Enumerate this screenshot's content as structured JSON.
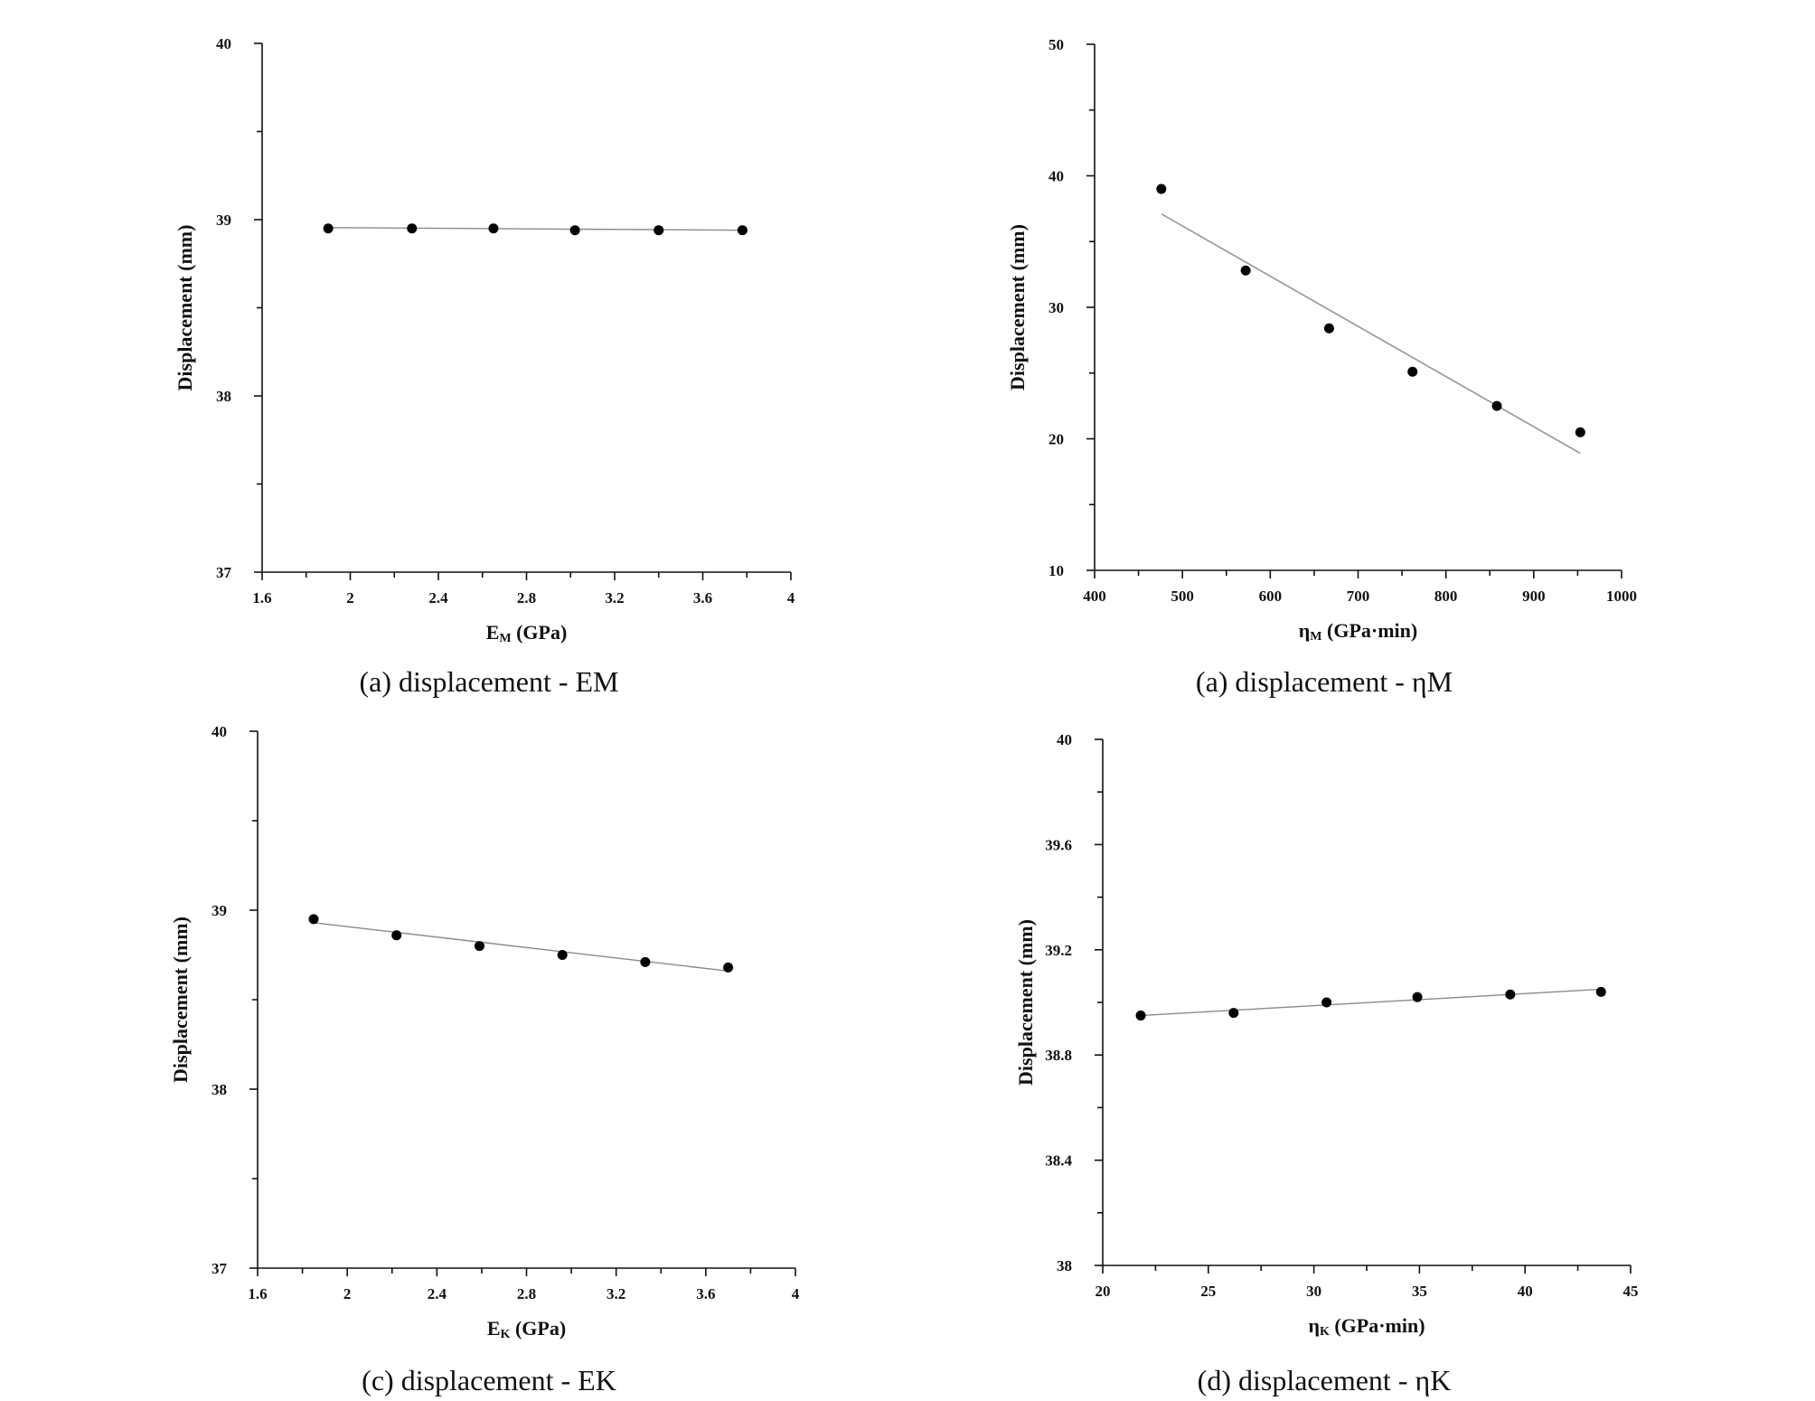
{
  "chart_data": [
    {
      "type": "scatter",
      "caption": "(a) displacement - EM",
      "xlabel": {
        "main": "E",
        "sub": "M",
        "rest": " (GPa)"
      },
      "ylabel": "Displacement (mm)",
      "xlim": [
        1.6,
        4.0
      ],
      "ylim": [
        37,
        40
      ],
      "xticks": [
        "1.6",
        "2",
        "2.4",
        "2.8",
        "3.2",
        "3.6",
        "4"
      ],
      "yticks": [
        "37",
        "38",
        "39",
        "40"
      ],
      "x_minor_ticks": 1,
      "y_minor_ticks": 1,
      "points": {
        "x": [
          1.9,
          2.28,
          2.65,
          3.02,
          3.4,
          3.78
        ],
        "y": [
          38.95,
          38.95,
          38.95,
          38.94,
          38.94,
          38.94
        ]
      },
      "fit": {
        "x": [
          1.9,
          3.78
        ],
        "y": [
          38.955,
          38.94
        ]
      }
    },
    {
      "type": "scatter",
      "caption": "(a) displacement - ηM",
      "xlabel": {
        "main": "η",
        "sub": "M",
        "rest": " (GPa·min)"
      },
      "ylabel": "Displacement (mm)",
      "xlim": [
        400,
        1000
      ],
      "ylim": [
        10,
        50
      ],
      "xticks": [
        "400",
        "500",
        "600",
        "700",
        "800",
        "900",
        "1000"
      ],
      "yticks": [
        "10",
        "20",
        "30",
        "40",
        "50"
      ],
      "x_minor_ticks": 1,
      "y_minor_ticks": 1,
      "points": {
        "x": [
          476,
          572,
          667,
          762,
          858,
          953
        ],
        "y": [
          39.0,
          32.8,
          28.4,
          25.1,
          22.5,
          20.5
        ]
      },
      "fit": {
        "x": [
          476,
          953
        ],
        "y": [
          37.1,
          18.9
        ]
      }
    },
    {
      "type": "scatter",
      "caption": "(c) displacement - EK",
      "xlabel": {
        "main": "E",
        "sub": "K",
        "rest": " (GPa)"
      },
      "ylabel": "Displacement (mm)",
      "xlim": [
        1.6,
        4.0
      ],
      "ylim": [
        37,
        40
      ],
      "xticks": [
        "1.6",
        "2",
        "2.4",
        "2.8",
        "3.2",
        "3.6",
        "4"
      ],
      "yticks": [
        "37",
        "38",
        "39",
        "40"
      ],
      "x_minor_ticks": 1,
      "y_minor_ticks": 1,
      "points": {
        "x": [
          1.85,
          2.22,
          2.59,
          2.96,
          3.33,
          3.7
        ],
        "y": [
          38.95,
          38.86,
          38.8,
          38.75,
          38.71,
          38.68
        ]
      },
      "fit": {
        "x": [
          1.85,
          3.7
        ],
        "y": [
          38.93,
          38.66
        ]
      }
    },
    {
      "type": "scatter",
      "caption": "(d) displacement - ηK",
      "xlabel": {
        "main": "η",
        "sub": "K",
        "rest": " (GPa·min)"
      },
      "ylabel": "Displacement (mm)",
      "xlim": [
        20,
        45
      ],
      "ylim": [
        38.0,
        40.0
      ],
      "xticks": [
        "20",
        "25",
        "30",
        "35",
        "40",
        "45"
      ],
      "yticks": [
        "38",
        "38.4",
        "38.8",
        "39.2",
        "39.6",
        "40"
      ],
      "x_minor_ticks": 1,
      "y_minor_ticks": 1,
      "points": {
        "x": [
          21.8,
          26.2,
          30.6,
          34.9,
          39.3,
          43.6
        ],
        "y": [
          38.95,
          38.96,
          39.0,
          39.02,
          39.03,
          39.04
        ]
      },
      "fit": {
        "x": [
          21.8,
          43.6
        ],
        "y": [
          38.95,
          39.05
        ]
      }
    }
  ]
}
